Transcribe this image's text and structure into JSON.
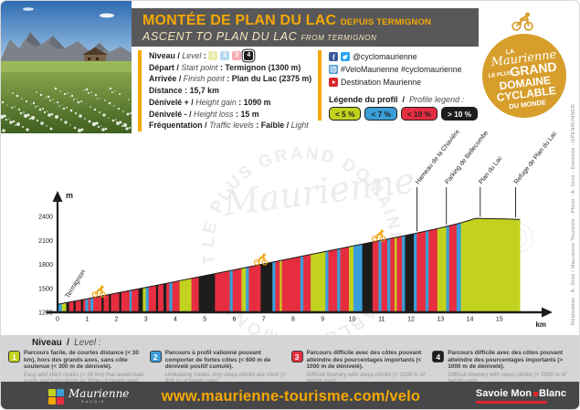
{
  "header": {
    "title_fr": "MONTÉE DE PLAN DU LAC",
    "title_fr_suffix": "DEPUIS TERMIGNON",
    "title_en": "ASCENT TO PLAN DU LAC",
    "title_en_suffix": "FROM TERMIGNON"
  },
  "badge": {
    "la": "LA",
    "script": "Maurienne",
    "leplus": "LE PLUS",
    "grand": "GRAND",
    "domaine": "DOMAINE",
    "cyclable": "CYCLABLE",
    "dumonde": "DU MONDE",
    "circle_color": "#d79e2c"
  },
  "info": {
    "sep_slash": "/",
    "sep_colon": ":",
    "niveau": {
      "fr": "Niveau",
      "en": "Level",
      "levels": [
        {
          "n": "1",
          "color": "#c3d21f",
          "active": false
        },
        {
          "n": "2",
          "color": "#3a9ed9",
          "active": false
        },
        {
          "n": "3",
          "color": "#e62e40",
          "active": false
        },
        {
          "n": "4",
          "color": "#1d1d1b",
          "active": true
        }
      ]
    },
    "depart": {
      "fr": "Départ",
      "en": "Start point",
      "value": "Termignon (1300 m)"
    },
    "arrivee": {
      "fr": "Arrivée",
      "en": "Finish point",
      "value": "Plan du Lac (2375 m)"
    },
    "distance": {
      "fr": "Distance",
      "value": "15,7 km"
    },
    "dplus": {
      "fr": "Dénivelé +",
      "en": "Height gain",
      "value": "1090 m"
    },
    "dminus": {
      "fr": "Dénivelé -",
      "en": "Height loss",
      "value": "15 m"
    },
    "freq": {
      "fr": "Fréquentation",
      "en": "Traffic levels",
      "value_fr": "Faible",
      "value_en": "Light"
    }
  },
  "social": {
    "row1": "@cyclomaurienne",
    "row2": "#VeloMaurienne #cyclomaurienne",
    "row3": "Destination Maurienne",
    "facebook_glyph": "f",
    "colors": {
      "facebook": "#3a5a98",
      "twitter": "#2aa3ef",
      "instagram": "#4c9ad4",
      "youtube": "#d7282f"
    }
  },
  "legend_box": {
    "title_fr": "Légende du profil",
    "title_en": "Profile legend :",
    "pills": [
      {
        "label": "< 5 %",
        "bg": "#c3d21f",
        "fg": "#1d1d1b"
      },
      {
        "label": "< 7 %",
        "bg": "#3a9ed9",
        "fg": "#1d1d1b"
      },
      {
        "label": "< 10 %",
        "bg": "#e62e40",
        "fg": "#1d1d1b"
      },
      {
        "label": "> 10 %",
        "bg": "#1d1d1b",
        "fg": "#ffffff"
      }
    ]
  },
  "chart_data": {
    "type": "area",
    "title": "",
    "xlabel": "km",
    "ylabel": "m",
    "xlim": [
      0,
      15.7
    ],
    "ylim": [
      1200,
      2400
    ],
    "x_ticks": [
      0,
      1,
      2,
      3,
      4,
      5,
      6,
      7,
      8,
      9,
      10,
      11,
      12,
      13,
      14,
      15
    ],
    "y_ticks": [
      1200,
      1500,
      1800,
      2100,
      2400
    ],
    "grid": false,
    "legend_position": "top-right-box",
    "legend": [
      {
        "label": "< 5 %",
        "color": "#c3d21f"
      },
      {
        "label": "< 7 %",
        "color": "#3a9ed9"
      },
      {
        "label": "< 10 %",
        "color": "#e62e40"
      },
      {
        "label": "> 10 %",
        "color": "#1d1d1b"
      }
    ],
    "colors": {
      "g": "#c3d21f",
      "b": "#3a9ed9",
      "r": "#e62e40",
      "k": "#1d1d1b"
    },
    "elevation_profile": [
      [
        0,
        1300
      ],
      [
        1,
        1368
      ],
      [
        2,
        1440
      ],
      [
        3,
        1512
      ],
      [
        4,
        1585
      ],
      [
        5,
        1658
      ],
      [
        6,
        1732
      ],
      [
        7,
        1806
      ],
      [
        8,
        1880
      ],
      [
        9,
        1954
      ],
      [
        10,
        2028
      ],
      [
        11,
        2102
      ],
      [
        12,
        2176
      ],
      [
        13,
        2256
      ],
      [
        13.7,
        2320
      ],
      [
        14.2,
        2375
      ],
      [
        14.7,
        2372
      ],
      [
        15.2,
        2368
      ],
      [
        15.7,
        2362
      ]
    ],
    "gradient_segments": [
      [
        0,
        0.15,
        "b"
      ],
      [
        0.15,
        0.3,
        "g"
      ],
      [
        0.3,
        0.4,
        "k"
      ],
      [
        0.4,
        0.55,
        "r"
      ],
      [
        0.55,
        0.62,
        "k"
      ],
      [
        0.62,
        0.8,
        "r"
      ],
      [
        0.8,
        0.87,
        "k"
      ],
      [
        0.87,
        0.95,
        "r"
      ],
      [
        0.95,
        1.05,
        "b"
      ],
      [
        1.05,
        1.12,
        "r"
      ],
      [
        1.12,
        1.22,
        "b"
      ],
      [
        1.22,
        1.5,
        "r"
      ],
      [
        1.5,
        1.57,
        "k"
      ],
      [
        1.57,
        1.75,
        "r"
      ],
      [
        1.75,
        1.82,
        "k"
      ],
      [
        1.82,
        2.1,
        "r"
      ],
      [
        2.1,
        2.17,
        "k"
      ],
      [
        2.17,
        2.45,
        "r"
      ],
      [
        2.45,
        2.52,
        "b"
      ],
      [
        2.52,
        2.75,
        "r"
      ],
      [
        2.75,
        2.9,
        "k"
      ],
      [
        2.9,
        3.0,
        "g"
      ],
      [
        3.0,
        3.1,
        "b"
      ],
      [
        3.1,
        3.35,
        "r"
      ],
      [
        3.35,
        3.42,
        "k"
      ],
      [
        3.42,
        3.6,
        "r"
      ],
      [
        3.6,
        3.7,
        "k"
      ],
      [
        3.7,
        3.8,
        "r"
      ],
      [
        3.8,
        3.9,
        "b"
      ],
      [
        3.9,
        4.15,
        "r"
      ],
      [
        4.15,
        4.55,
        "g"
      ],
      [
        4.55,
        4.8,
        "r"
      ],
      [
        4.8,
        5.35,
        "k"
      ],
      [
        5.35,
        5.85,
        "r"
      ],
      [
        5.85,
        5.95,
        "b"
      ],
      [
        5.95,
        6.25,
        "r"
      ],
      [
        6.25,
        6.4,
        "g"
      ],
      [
        6.4,
        6.5,
        "b"
      ],
      [
        6.5,
        6.9,
        "r"
      ],
      [
        6.9,
        7.3,
        "k"
      ],
      [
        7.3,
        7.4,
        "b"
      ],
      [
        7.4,
        7.55,
        "r"
      ],
      [
        7.55,
        7.62,
        "g"
      ],
      [
        7.62,
        8.25,
        "r"
      ],
      [
        8.25,
        8.35,
        "b"
      ],
      [
        8.35,
        8.6,
        "r"
      ],
      [
        8.6,
        9.1,
        "g"
      ],
      [
        9.1,
        9.2,
        "b"
      ],
      [
        9.2,
        9.5,
        "r"
      ],
      [
        9.5,
        9.6,
        "b"
      ],
      [
        9.6,
        9.9,
        "r"
      ],
      [
        9.9,
        10.05,
        "g"
      ],
      [
        10.05,
        10.35,
        "b"
      ],
      [
        10.35,
        10.7,
        "k"
      ],
      [
        10.7,
        10.9,
        "r"
      ],
      [
        10.9,
        11.0,
        "b"
      ],
      [
        11.0,
        11.2,
        "r"
      ],
      [
        11.2,
        11.3,
        "b"
      ],
      [
        11.3,
        11.45,
        "r"
      ],
      [
        11.45,
        11.52,
        "g"
      ],
      [
        11.52,
        11.7,
        "r"
      ],
      [
        11.7,
        11.8,
        "b"
      ],
      [
        11.8,
        12.1,
        "k"
      ],
      [
        12.1,
        12.2,
        "b"
      ],
      [
        12.2,
        12.5,
        "r"
      ],
      [
        12.5,
        12.6,
        "b"
      ],
      [
        12.6,
        12.9,
        "r"
      ],
      [
        12.9,
        13.2,
        "g"
      ],
      [
        13.2,
        13.3,
        "b"
      ],
      [
        13.3,
        13.55,
        "r"
      ],
      [
        13.55,
        13.7,
        "b"
      ],
      [
        13.7,
        15.7,
        "g"
      ]
    ],
    "waypoints": [
      {
        "km": 0.25,
        "label": "Termignon",
        "leader": false
      },
      {
        "km": 12.2,
        "label": "Hameau de la Chavière",
        "leader": true
      },
      {
        "km": 13.2,
        "label": "Parking de Bellecombe",
        "leader": true
      },
      {
        "km": 14.35,
        "label": "Plan du Lac",
        "leader": true
      },
      {
        "km": 15.55,
        "label": "Refuge de Plan du Lac",
        "leader": true
      }
    ],
    "cyclists_km": [
      1.4,
      6.9,
      10.9
    ],
    "cyclist_color": "#f0a30a"
  },
  "watermark": {
    "ring": "LE PLUS GRAND DOMAINE CYCLABLE DU MONDE • THE LARGEST CYCLING AREA IN THE WORLD •",
    "script": "Maurienne",
    "outline": "GRAND"
  },
  "credit": "Réalisation : A. Gros / Maurienne Tourisme - Photo : A. Gros - Données : OPENRUNNER",
  "levels_band": {
    "title_fr": "Niveau",
    "title_en": "Level :",
    "items": [
      {
        "n": "1",
        "color": "#c3d21f",
        "fr": "Parcours facile, de courtes distance (< 30 km), hors des grands axes, sans côte soutenue (< 300 m de dénivelé).",
        "en": "Easy and short routes (< 30 km) that avoid main roads and long climbs (< 300m of height gain)"
      },
      {
        "n": "2",
        "color": "#3a9ed9",
        "fr": "Parcours à profil vallonné pouvant comporter de fortes côtes (< 600 m de dénivelé positif cumulé).",
        "en": "Undulating routes. Any steep climbs are short (< 600 m of height gain)"
      },
      {
        "n": "3",
        "color": "#e62e40",
        "fr": "Parcours difficile avec des côtes pouvant atteindre des pourcentages importants (< 1000 m de dénivelé).",
        "en": "Difficult itinerary with steep climbs (< 1000 m of height gain)"
      },
      {
        "n": "4",
        "color": "#1d1d1b",
        "fr": "Parcours difficile avec des côtes pouvant atteindre des pourcentages importants (> 1000 m de dénivelé).",
        "en": "Difficult itinerary with steep climbs (> 1000 m of height gain)"
      }
    ]
  },
  "footer": {
    "website": "www.maurienne-tourisme.com/velo",
    "maurienne": "Maurienne",
    "maurienne_sub": "SAVOIE",
    "logo_colors": [
      "#c3d21f",
      "#3a9ed9",
      "#f5a800",
      "#e62e40"
    ],
    "savoie_1": "Savoie Mon",
    "savoie_2": "Blanc"
  }
}
